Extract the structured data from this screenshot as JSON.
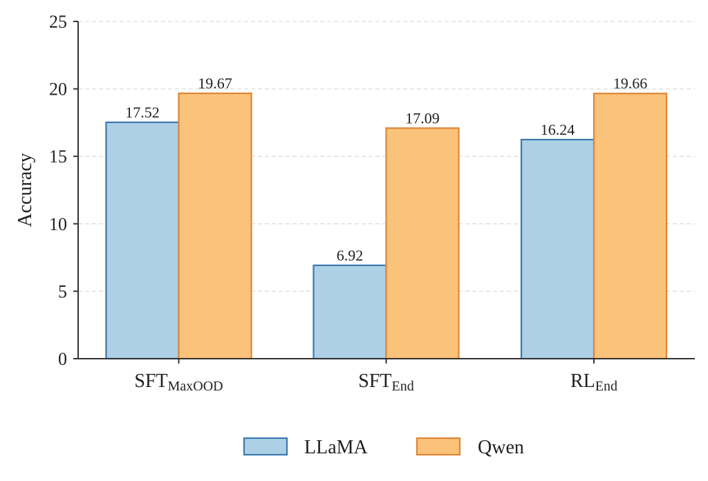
{
  "chart_data": {
    "type": "bar",
    "categories": [
      {
        "main": "SFT",
        "sub": "MaxOOD"
      },
      {
        "main": "SFT",
        "sub": "End"
      },
      {
        "main": "RL",
        "sub": "End"
      }
    ],
    "series": [
      {
        "name": "LLaMA",
        "values": [
          17.52,
          6.92,
          16.24
        ],
        "labels": [
          "17.52",
          "6.92",
          "16.24"
        ],
        "fill": "#aed0e6",
        "stroke": "#3a78b0"
      },
      {
        "name": "Qwen",
        "values": [
          19.67,
          17.09,
          19.66
        ],
        "labels": [
          "19.67",
          "17.09",
          "19.66"
        ],
        "fill": "#fbc27a",
        "stroke": "#df8535"
      }
    ],
    "ylabel": "Accuracy",
    "ylim": [
      0,
      25
    ],
    "yticks": [
      0,
      5,
      10,
      15,
      20,
      25
    ],
    "ytick_labels": [
      "0",
      "5",
      "10",
      "15",
      "20",
      "25"
    ],
    "grid": true,
    "legend_position": "bottom-center",
    "axis_color": "#333333",
    "grid_color": "#dddddd"
  }
}
